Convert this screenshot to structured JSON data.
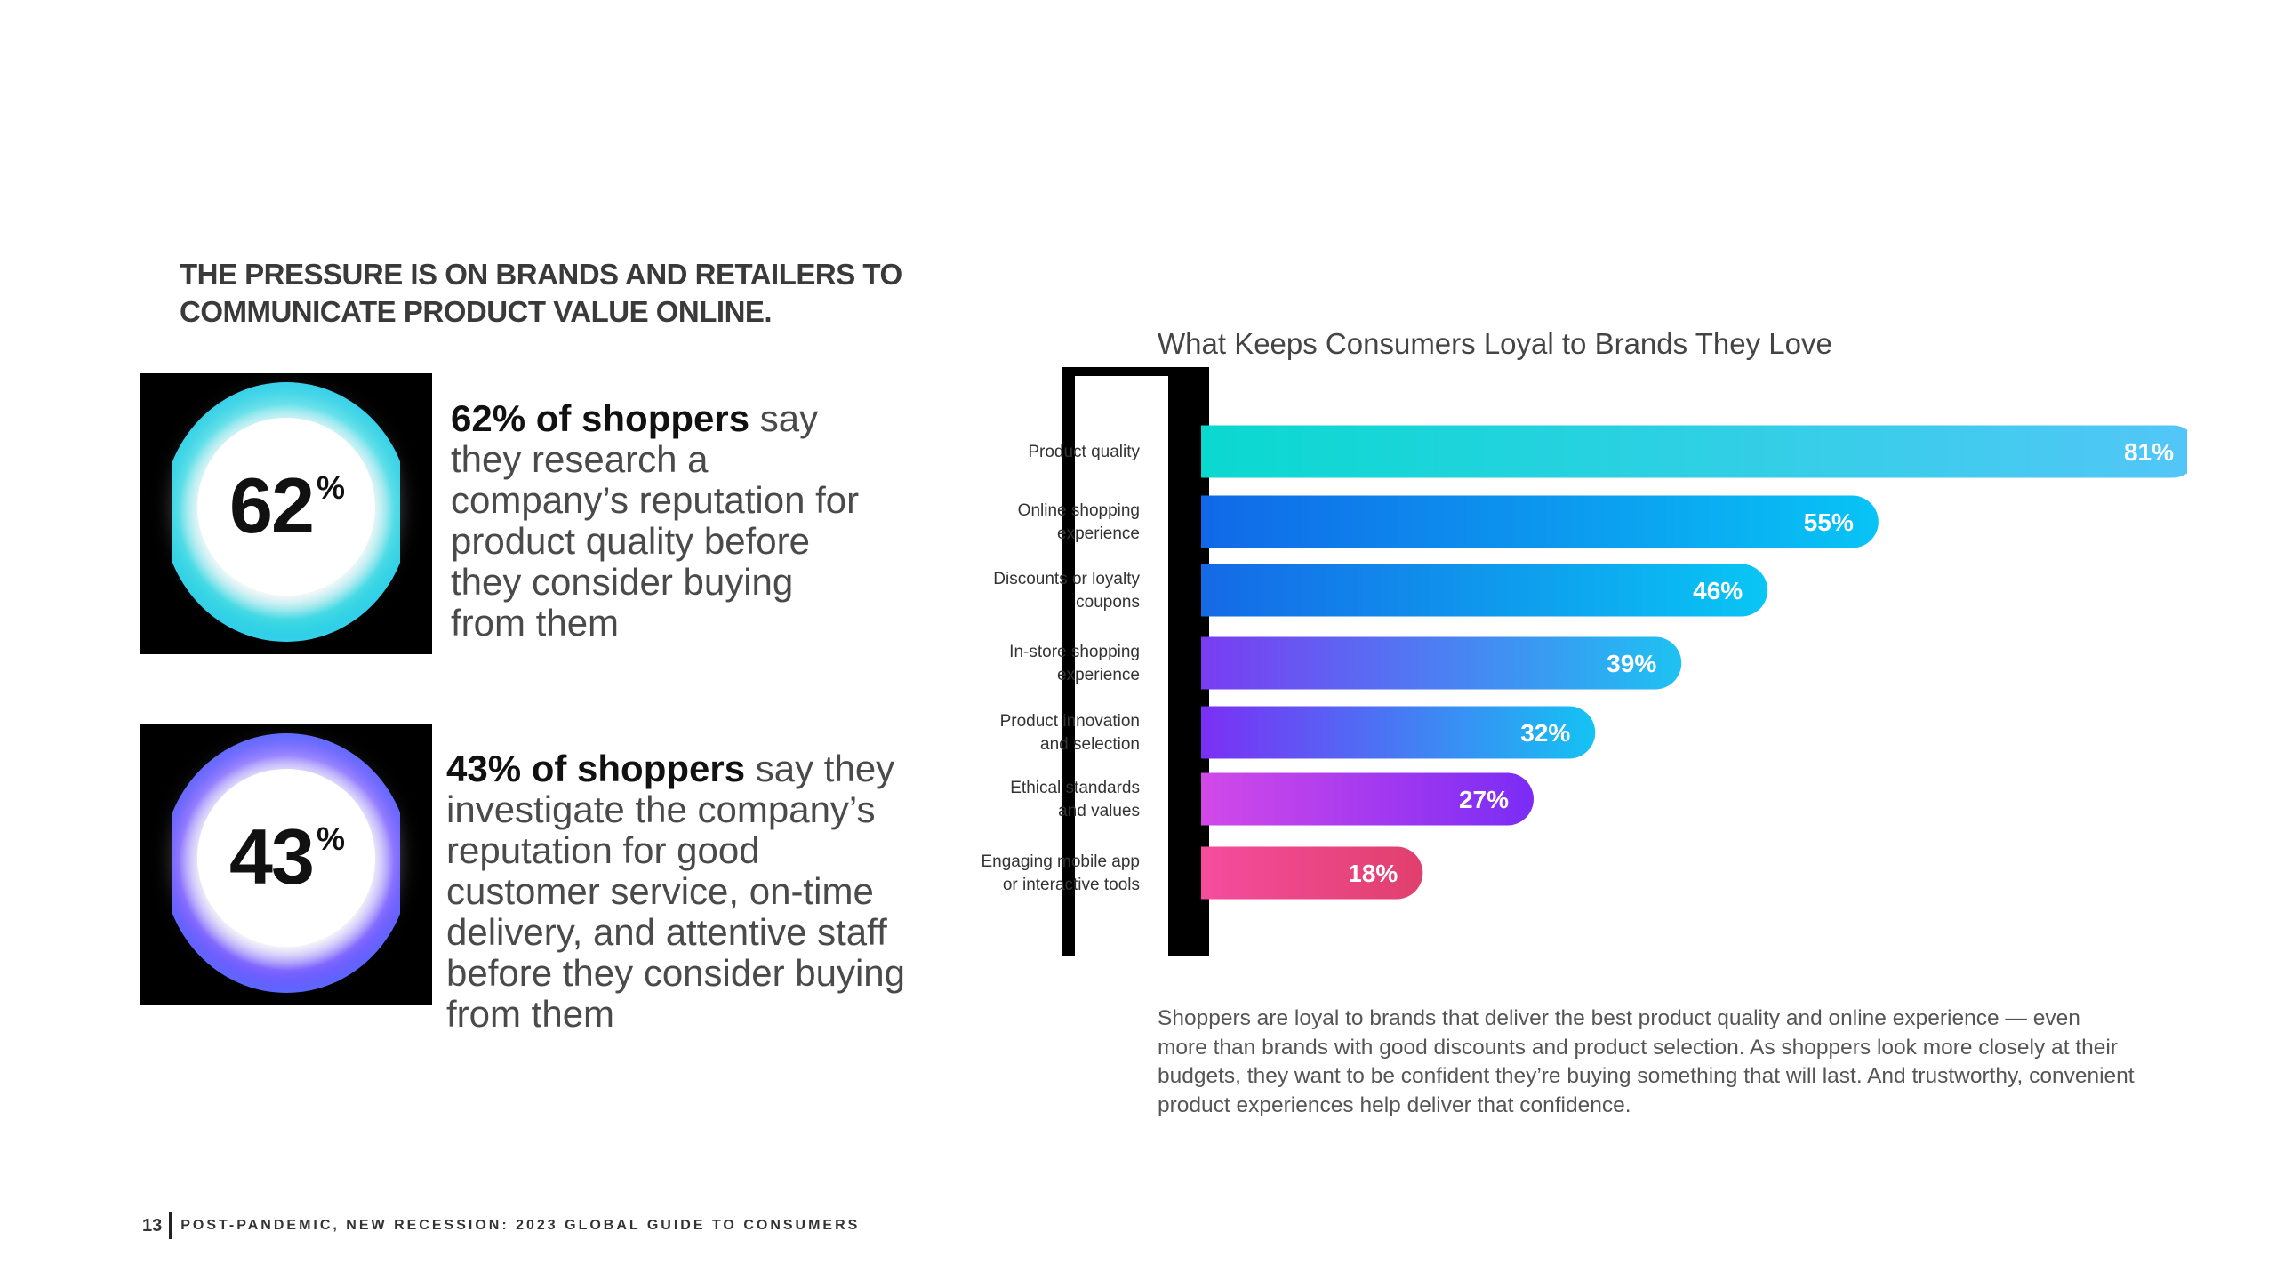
{
  "headline": [
    "THE PRESSURE IS ON BRANDS AND RETAILERS TO",
    "COMMUNICATE PRODUCT VALUE ONLINE."
  ],
  "stats": [
    {
      "value": "62",
      "unit": "%",
      "bold": "62% of shoppers",
      "rest": " say they research a company’s reputation for product quality before they consider buying from them"
    },
    {
      "value": "43",
      "unit": "%",
      "bold": "43% of shoppers",
      "rest": " say they investigate the company’s reputation for good customer service, on-time delivery, and attentive staff before they consider buying from them"
    }
  ],
  "chart_data": {
    "type": "bar",
    "orientation": "horizontal",
    "title": "What Keeps Consumers Loyal to Brands They Love",
    "categories": [
      [
        "Product quality"
      ],
      [
        "Online shopping",
        "experience"
      ],
      [
        "Discounts or loyalty",
        "coupons"
      ],
      [
        "In-store shopping",
        "experience"
      ],
      [
        "Product innovation",
        "and selection"
      ],
      [
        "Ethical standards",
        "and values"
      ],
      [
        "Engaging mobile app",
        "or interactive tools"
      ]
    ],
    "values": [
      81,
      55,
      46,
      39,
      32,
      27,
      18
    ],
    "value_suffix": "%",
    "xlim": [
      0,
      81
    ],
    "bar_gradients": [
      [
        "#0ad9d0",
        "#53c6f8"
      ],
      [
        "#1069e8",
        "#08c4f5"
      ],
      [
        "#1569e6",
        "#09c6f4"
      ],
      [
        "#7a3cf2",
        "#1ec2f2"
      ],
      [
        "#7b2ff4",
        "#14c3f3"
      ],
      [
        "#d249e8",
        "#7a2cf5"
      ],
      [
        "#f64c9e",
        "#e0406d"
      ]
    ]
  },
  "caption": "Shoppers are loyal to brands that deliver the best product quality and online experience — even more than brands with good discounts and product selection. As shoppers look more closely at their budgets, they want to be confident they’re buying something that will last. And trustworthy, convenient product experiences help deliver that confidence.",
  "footer": {
    "page": "13",
    "title": "POST-PANDEMIC, NEW RECESSION: 2023 GLOBAL GUIDE TO CONSUMERS"
  }
}
